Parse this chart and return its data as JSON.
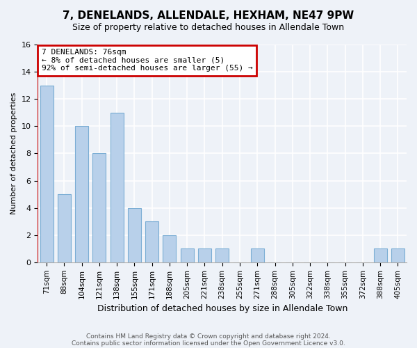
{
  "title": "7, DENELANDS, ALLENDALE, HEXHAM, NE47 9PW",
  "subtitle": "Size of property relative to detached houses in Allendale Town",
  "xlabel": "Distribution of detached houses by size in Allendale Town",
  "ylabel": "Number of detached properties",
  "footnote1": "Contains HM Land Registry data © Crown copyright and database right 2024.",
  "footnote2": "Contains public sector information licensed under the Open Government Licence v3.0.",
  "categories": [
    "71sqm",
    "88sqm",
    "104sqm",
    "121sqm",
    "138sqm",
    "155sqm",
    "171sqm",
    "188sqm",
    "205sqm",
    "221sqm",
    "238sqm",
    "255sqm",
    "271sqm",
    "288sqm",
    "305sqm",
    "322sqm",
    "338sqm",
    "355sqm",
    "372sqm",
    "388sqm",
    "405sqm"
  ],
  "values": [
    13,
    5,
    10,
    8,
    11,
    4,
    3,
    2,
    1,
    1,
    1,
    0,
    1,
    0,
    0,
    0,
    0,
    0,
    0,
    1,
    1
  ],
  "bar_color": "#b8d0ea",
  "bar_edge_color": "#7aadd4",
  "bar_width": 0.75,
  "property_line_x": -0.5,
  "property_line_color": "#cc0000",
  "annotation_text": "7 DENELANDS: 76sqm\n← 8% of detached houses are smaller (5)\n92% of semi-detached houses are larger (55) →",
  "annotation_box_color": "white",
  "annotation_box_edge": "#cc0000",
  "ylim": [
    0,
    16
  ],
  "yticks": [
    0,
    2,
    4,
    6,
    8,
    10,
    12,
    14,
    16
  ],
  "background_color": "#eef2f8",
  "grid_color": "white",
  "title_fontsize": 11,
  "subtitle_fontsize": 9,
  "annotation_fontsize": 8
}
